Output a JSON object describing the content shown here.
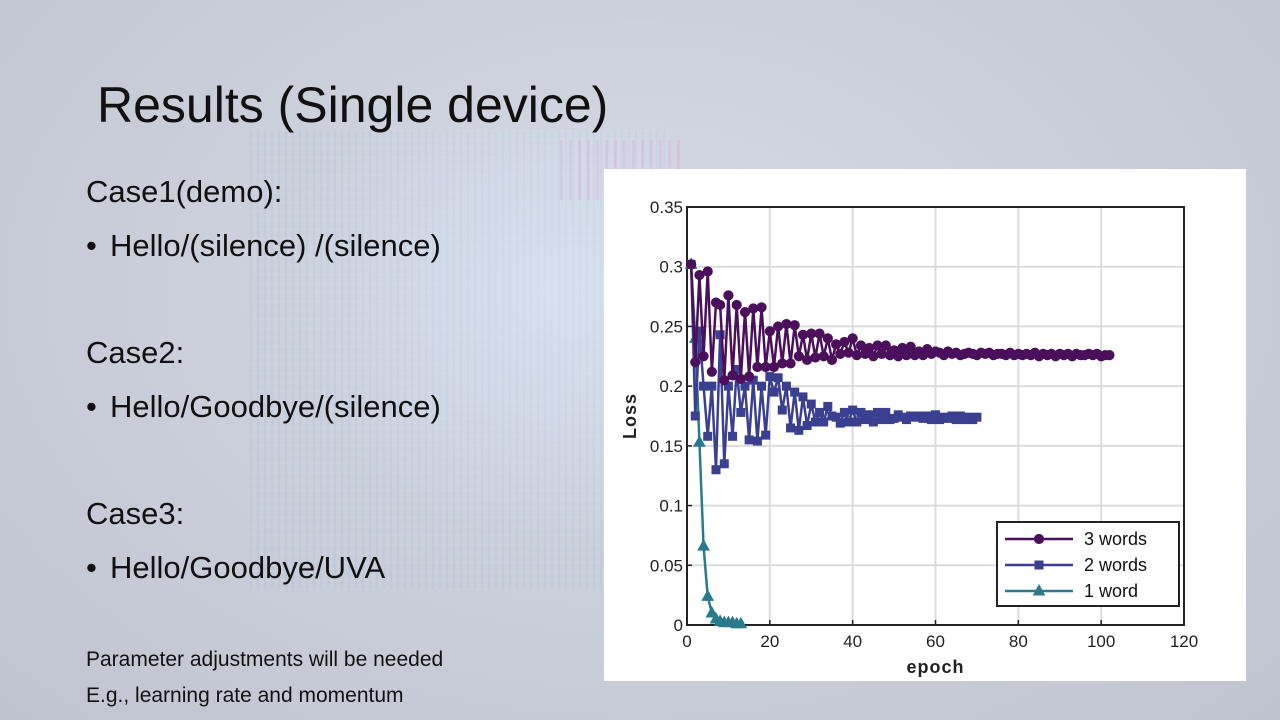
{
  "slide": {
    "title": "Results (Single device)",
    "cases": [
      {
        "heading": "Case1(demo):",
        "bullet": "•",
        "item": "Hello/(silence) /(silence)"
      },
      {
        "heading": "Case2:",
        "bullet": "•",
        "item": "Hello/Goodbye/(silence)"
      },
      {
        "heading": "Case3:",
        "bullet": "•",
        "item": "Hello/Goodbye/UVA"
      }
    ],
    "notes": [
      "Parameter adjustments will be needed",
      "E.g., learning rate and momentum"
    ]
  },
  "chart_data": {
    "type": "line",
    "title": "",
    "xlabel": "epoch",
    "ylabel": "Loss",
    "xlim": [
      0,
      120
    ],
    "ylim": [
      0,
      0.35
    ],
    "xticks": [
      0,
      20,
      40,
      60,
      80,
      100,
      120
    ],
    "xtick_labels": [
      "0",
      "20",
      "40",
      "60",
      "80",
      "100",
      "120"
    ],
    "yticks": [
      0,
      0.05,
      0.1,
      0.15,
      0.2,
      0.25,
      0.3,
      0.35
    ],
    "ytick_labels": [
      "0",
      "0.05",
      "0.1",
      "0.15",
      "0.2",
      "0.25",
      "0.3",
      "0.35"
    ],
    "grid": true,
    "legend_position": "bottom-right",
    "series": [
      {
        "name": "3 words",
        "color": "#4b0f5c",
        "marker": "circle",
        "x": [
          1,
          2,
          3,
          4,
          5,
          6,
          7,
          8,
          9,
          10,
          11,
          12,
          13,
          14,
          15,
          16,
          17,
          18,
          19,
          20,
          21,
          22,
          23,
          24,
          25,
          26,
          27,
          28,
          29,
          30,
          31,
          32,
          33,
          34,
          35,
          36,
          37,
          38,
          39,
          40,
          41,
          42,
          43,
          44,
          45,
          46,
          47,
          48,
          49,
          50,
          51,
          52,
          53,
          54,
          55,
          56,
          57,
          58,
          59,
          60,
          61,
          62,
          63,
          64,
          65,
          66,
          67,
          68,
          69,
          70,
          71,
          72,
          73,
          74,
          75,
          76,
          77,
          78,
          79,
          80,
          81,
          82,
          83,
          84,
          85,
          86,
          87,
          88,
          89,
          90,
          91,
          92,
          93,
          94,
          95,
          96,
          97,
          98,
          99,
          100,
          101,
          102
        ],
        "y": [
          0.302,
          0.22,
          0.293,
          0.225,
          0.296,
          0.212,
          0.27,
          0.268,
          0.205,
          0.276,
          0.209,
          0.268,
          0.206,
          0.262,
          0.208,
          0.265,
          0.216,
          0.266,
          0.216,
          0.246,
          0.216,
          0.25,
          0.219,
          0.252,
          0.219,
          0.251,
          0.225,
          0.243,
          0.222,
          0.244,
          0.224,
          0.244,
          0.225,
          0.24,
          0.222,
          0.235,
          0.227,
          0.237,
          0.228,
          0.24,
          0.226,
          0.234,
          0.227,
          0.232,
          0.225,
          0.234,
          0.227,
          0.234,
          0.226,
          0.23,
          0.225,
          0.232,
          0.226,
          0.233,
          0.226,
          0.229,
          0.226,
          0.231,
          0.227,
          0.229,
          0.228,
          0.226,
          0.229,
          0.227,
          0.228,
          0.226,
          0.227,
          0.228,
          0.227,
          0.226,
          0.228,
          0.227,
          0.228,
          0.226,
          0.227,
          0.227,
          0.226,
          0.228,
          0.226,
          0.227,
          0.226,
          0.227,
          0.226,
          0.228,
          0.225,
          0.227,
          0.226,
          0.227,
          0.225,
          0.227,
          0.226,
          0.227,
          0.225,
          0.227,
          0.226,
          0.226,
          0.227,
          0.226,
          0.227,
          0.225,
          0.226,
          0.226
        ]
      },
      {
        "name": "2 words",
        "color": "#3b3f8f",
        "marker": "square",
        "x": [
          1,
          2,
          3,
          4,
          5,
          6,
          7,
          8,
          9,
          10,
          11,
          12,
          13,
          14,
          15,
          16,
          17,
          18,
          19,
          20,
          21,
          22,
          23,
          24,
          25,
          26,
          27,
          28,
          29,
          30,
          31,
          32,
          33,
          34,
          35,
          36,
          37,
          38,
          39,
          40,
          41,
          42,
          43,
          44,
          45,
          46,
          47,
          48,
          49,
          50,
          51,
          52,
          53,
          54,
          55,
          56,
          57,
          58,
          59,
          60,
          61,
          62,
          63,
          64,
          65,
          66,
          67,
          68,
          69,
          70
        ],
        "y": [
          0.302,
          0.175,
          0.246,
          0.2,
          0.158,
          0.2,
          0.13,
          0.243,
          0.135,
          0.2,
          0.158,
          0.214,
          0.178,
          0.2,
          0.155,
          0.205,
          0.154,
          0.2,
          0.159,
          0.208,
          0.195,
          0.207,
          0.18,
          0.2,
          0.165,
          0.195,
          0.163,
          0.191,
          0.167,
          0.185,
          0.17,
          0.178,
          0.17,
          0.183,
          0.175,
          0.174,
          0.169,
          0.178,
          0.17,
          0.18,
          0.17,
          0.178,
          0.172,
          0.176,
          0.17,
          0.178,
          0.172,
          0.178,
          0.172,
          0.173,
          0.176,
          0.174,
          0.172,
          0.175,
          0.174,
          0.175,
          0.173,
          0.175,
          0.172,
          0.176,
          0.172,
          0.174,
          0.173,
          0.175,
          0.172,
          0.175,
          0.172,
          0.174,
          0.172,
          0.174
        ]
      },
      {
        "name": "1 word",
        "color": "#2a7a8c",
        "marker": "triangle",
        "x": [
          1,
          2,
          3,
          4,
          5,
          6,
          7,
          8,
          9,
          10,
          11,
          12,
          13
        ],
        "y": [
          0.302,
          0.24,
          0.153,
          0.066,
          0.024,
          0.01,
          0.005,
          0.003,
          0.002,
          0.002,
          0.002,
          0.001,
          0.001
        ]
      }
    ]
  }
}
